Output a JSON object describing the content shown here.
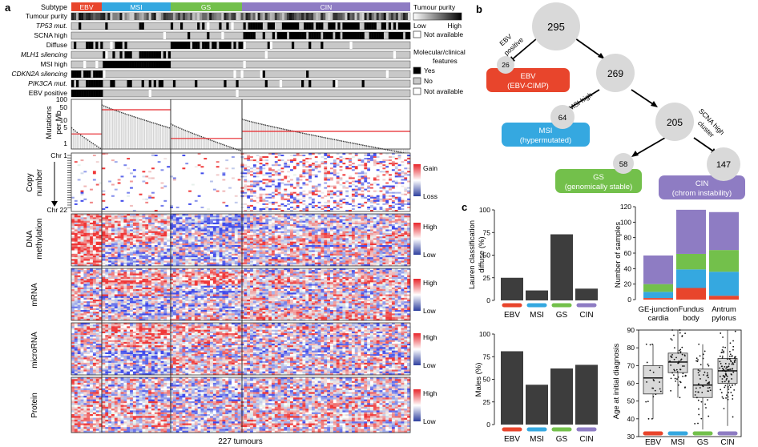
{
  "panel_a": {
    "letter": "a",
    "subtype_label": "Subtype",
    "subtypes": [
      {
        "name": "EBV",
        "color": "#e8452c"
      },
      {
        "name": "MSI",
        "color": "#35a8e0"
      },
      {
        "name": "GS",
        "color": "#73c04b"
      },
      {
        "name": "CIN",
        "color": "#8e7cc3"
      }
    ],
    "track_labels": [
      "Tumour purity",
      "TP53 mut.",
      "SCNA high",
      "Diffuse",
      "MLH1 silencing",
      "MSI high",
      "CDKN2A silencing",
      "PIK3CA mut.",
      "EBV positive"
    ],
    "purity_legend": {
      "title": "Tumour purity",
      "low": "Low",
      "high": "High",
      "na": "Not available"
    },
    "features_legend": {
      "title_1": "Molecular/clinical",
      "title_2": "features",
      "yes": "Yes",
      "no": "No",
      "na": "Not available"
    },
    "mutations": {
      "ylabel_1": "Mutations",
      "ylabel_2": "per Mb",
      "ticks": [
        "100",
        "50",
        "10",
        "5",
        "1"
      ]
    },
    "copy_number": {
      "ylabel_1": "Copy",
      "ylabel_2": "number",
      "chr_top": "Chr 1",
      "chr_bottom": "Chr 22",
      "gain": "Gain",
      "loss": "Loss"
    },
    "heatmaps": [
      {
        "label_1": "DNA",
        "label_2": "methylation",
        "high": "High",
        "low": "Low"
      },
      {
        "label_1": "mRNA",
        "label_2": "",
        "high": "High",
        "low": "Low"
      },
      {
        "label_1": "microRNA",
        "label_2": "",
        "high": "High",
        "low": "Low"
      },
      {
        "label_1": "Protein",
        "label_2": "",
        "high": "High",
        "low": "Low"
      }
    ],
    "xlabel": "227 tumours"
  },
  "panel_b": {
    "letter": "b",
    "nodes": {
      "root": "295",
      "n269": "269",
      "n205": "205",
      "ebv": "26",
      "msi": "64",
      "gs": "58",
      "cin": "147"
    },
    "edges": {
      "ebv_1": "EBV",
      "ebv_2": "positive",
      "msi": "MSI high",
      "scna_1": "SCNA high",
      "scna_2": "cluster"
    },
    "boxes": [
      {
        "name": "EBV",
        "sub": "(EBV-CIMP)",
        "color": "#e8452c"
      },
      {
        "name": "MSI",
        "sub": "(hypermutated)",
        "color": "#35a8e0"
      },
      {
        "name": "GS",
        "sub": "(genomically stable)",
        "color": "#73c04b"
      },
      {
        "name": "CIN",
        "sub": "(chrom instability)",
        "color": "#8e7cc3"
      }
    ]
  },
  "panel_c": {
    "letter": "c"
  },
  "chart_data": [
    {
      "type": "bar",
      "title": "",
      "ylabel": "Lauren classification diffuse (%)",
      "categories": [
        "EBV",
        "MSI",
        "GS",
        "CIN"
      ],
      "values": [
        25,
        11,
        73,
        13
      ],
      "ylim": [
        0,
        100
      ],
      "yticks": [
        "0",
        "25",
        "50",
        "75",
        "100"
      ]
    },
    {
      "type": "bar",
      "stacked": true,
      "ylabel": "Number of samples",
      "categories": [
        "GE-junction cardia",
        "Fundus body",
        "Antrum pylorus"
      ],
      "category_lines": [
        [
          "GE-junction",
          "cardia"
        ],
        [
          "Fundus",
          "body"
        ],
        [
          "Antrum",
          "pylorus"
        ]
      ],
      "series": [
        {
          "name": "EBV",
          "color": "#e8452c",
          "values": [
            2,
            15,
            5
          ]
        },
        {
          "name": "MSI",
          "color": "#35a8e0",
          "values": [
            8,
            24,
            31
          ]
        },
        {
          "name": "GS",
          "color": "#73c04b",
          "values": [
            10,
            20,
            28
          ]
        },
        {
          "name": "CIN",
          "color": "#8e7cc3",
          "values": [
            37,
            57,
            49
          ]
        }
      ],
      "ylim": [
        0,
        120
      ],
      "yticks": [
        "0",
        "20",
        "40",
        "60",
        "80",
        "100",
        "120"
      ]
    },
    {
      "type": "bar",
      "ylabel": "Males (%)",
      "categories": [
        "EBV",
        "MSI",
        "GS",
        "CIN"
      ],
      "values": [
        81,
        44,
        62,
        66
      ],
      "ylim": [
        0,
        100
      ],
      "yticks": [
        "0",
        "25",
        "50",
        "75",
        "100"
      ]
    },
    {
      "type": "box",
      "ylabel": "Age at initial diagnosis",
      "categories": [
        "EBV",
        "MSI",
        "GS",
        "CIN"
      ],
      "boxes": [
        {
          "min": 40,
          "q1": 54,
          "median": 63,
          "q3": 70,
          "max": 82
        },
        {
          "min": 52,
          "q1": 66,
          "median": 72,
          "q3": 77,
          "max": 90
        },
        {
          "min": 34,
          "q1": 52,
          "median": 59,
          "q3": 68,
          "max": 82
        },
        {
          "min": 36,
          "q1": 60,
          "median": 67,
          "q3": 74,
          "max": 90
        }
      ],
      "ylim": [
        30,
        90
      ],
      "yticks": [
        "30",
        "40",
        "50",
        "60",
        "70",
        "80",
        "90"
      ]
    }
  ]
}
